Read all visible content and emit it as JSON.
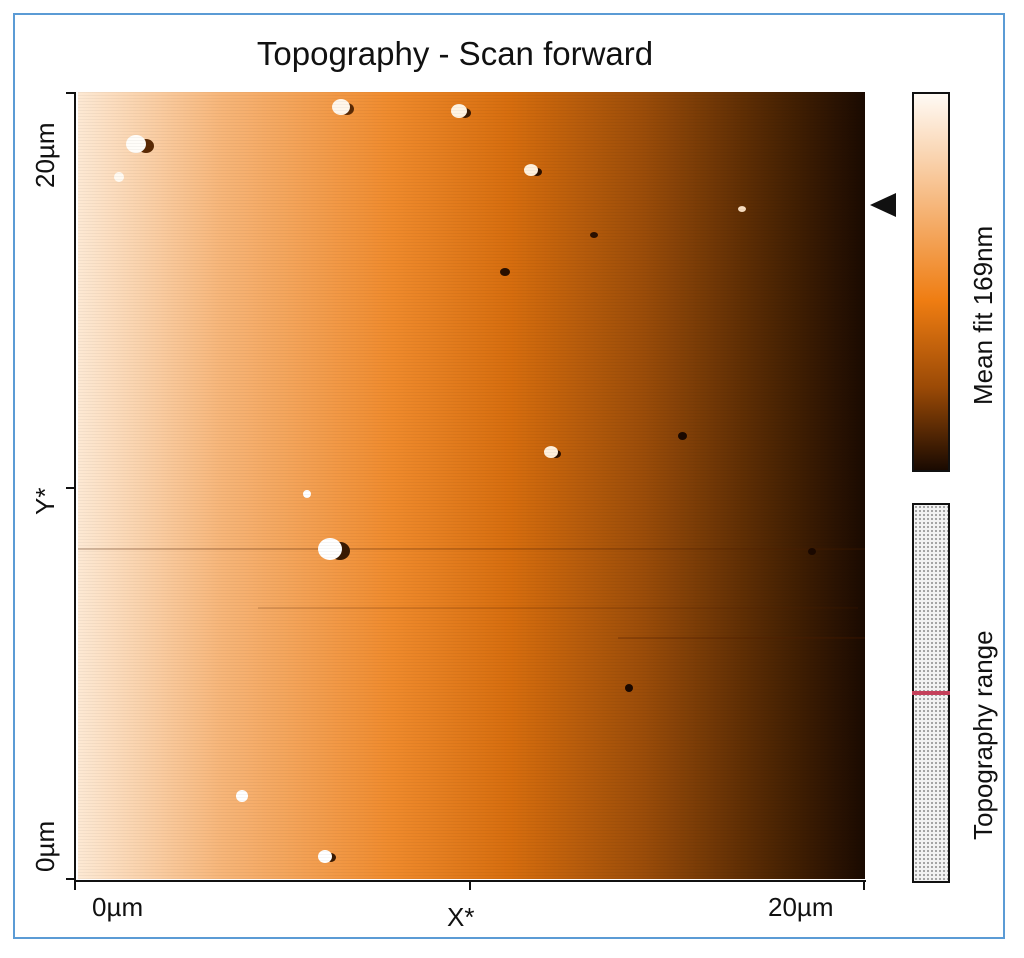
{
  "title": "Topography - Scan forward",
  "x_axis": {
    "label": "X*",
    "start": "0µm",
    "end": "20µm"
  },
  "y_axis": {
    "label": "Y*",
    "start": "0µm",
    "end": "20µm"
  },
  "colorbar": {
    "label": "Mean fit 169nm"
  },
  "range_bar": {
    "label": "Topography range",
    "position": 0.5
  },
  "colors": {
    "frame": "#5b9bd5",
    "range_marker": "#c4405a"
  }
}
